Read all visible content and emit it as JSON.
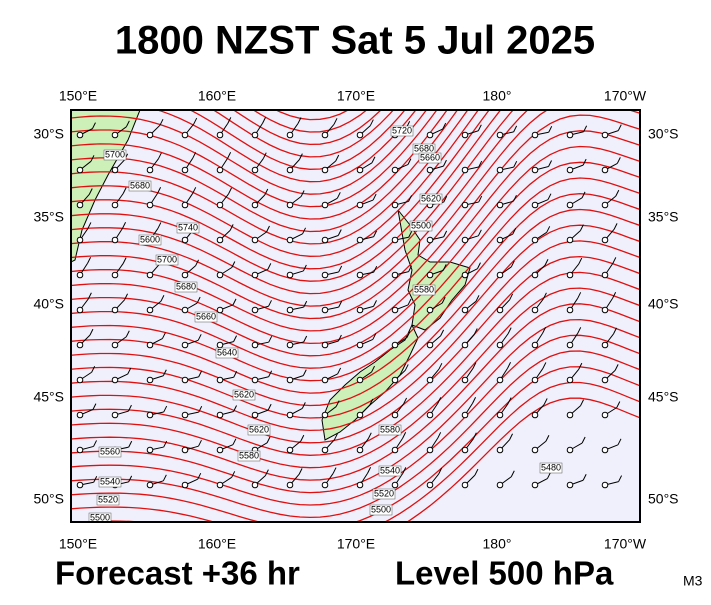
{
  "title": "1800 NZST Sat 5 Jul 2025",
  "map": {
    "lon_labels": [
      "150°E",
      "160°E",
      "170°E",
      "180°",
      "170°W"
    ],
    "lat_labels": [
      "30°S",
      "35°S",
      "40°S",
      "45°S",
      "50°S"
    ],
    "contour_labels": [
      "5720",
      "5680",
      "5660",
      "5620",
      "5700",
      "5680",
      "5740",
      "5700",
      "5680",
      "5660",
      "5640",
      "5620",
      "5620",
      "5580",
      "5560",
      "5540",
      "5520",
      "5500",
      "5480",
      "5540",
      "5520",
      "5500",
      "5580",
      "5500",
      "5580",
      "5600"
    ]
  },
  "footer": {
    "forecast": "Forecast +36 hr",
    "level": "Level 500 hPa",
    "code": "M3"
  }
}
